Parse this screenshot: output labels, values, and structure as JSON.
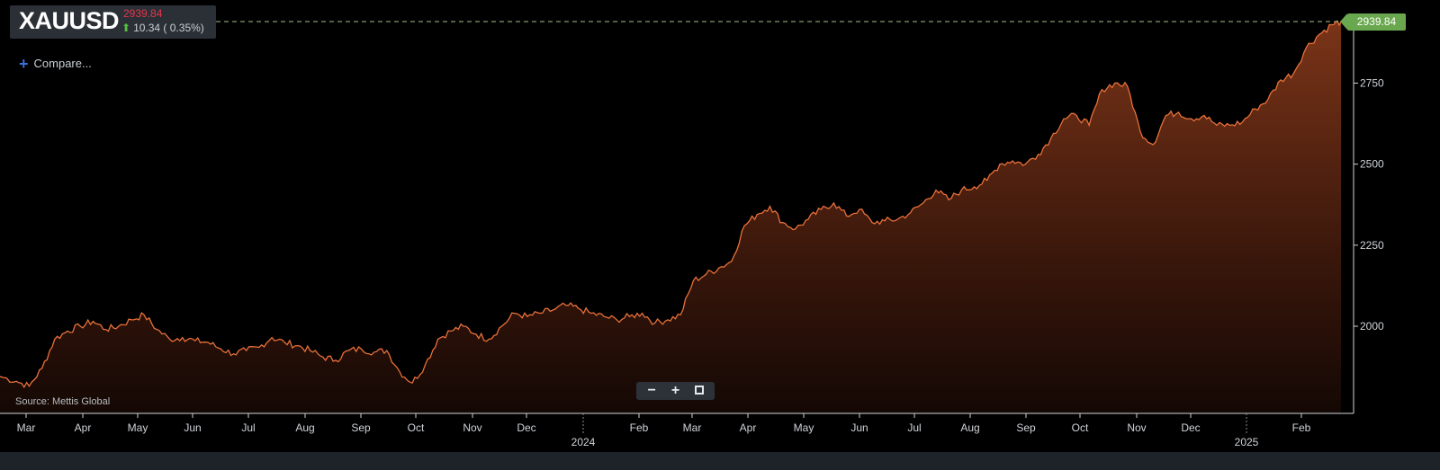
{
  "ticker": {
    "symbol": "XAUUSD",
    "price": "2939.84",
    "change": "10.34 ( 0.35%)",
    "direction": "up"
  },
  "compare_label": "Compare...",
  "source_label": "Source: Mettis Global",
  "last_price_tag": "2939.84",
  "zoom_controls": {
    "zoom_out": "−",
    "zoom_in": "+"
  },
  "colors": {
    "background": "#000000",
    "line": "#e8703a",
    "area_top": "#7a3418",
    "area_bottom": "#140804",
    "price_down_text": "#e0384c",
    "up_arrow": "#56c13d",
    "last_price_tag": "#6aa84f",
    "axis": "#cfd3d8"
  },
  "chart_data": {
    "type": "area",
    "y_ticks": [
      2000,
      2250,
      2500,
      2750
    ],
    "ylim": [
      1780,
      2980
    ],
    "x_tick_labels": [
      "Mar",
      "Apr",
      "May",
      "Jun",
      "Jul",
      "Aug",
      "Sep",
      "Oct",
      "Nov",
      "Dec",
      "Feb",
      "Mar",
      "Apr",
      "May",
      "Jun",
      "Jul",
      "Aug",
      "Sep",
      "Oct",
      "Nov",
      "Dec",
      "Feb"
    ],
    "year_labels": [
      "2024",
      "2025"
    ],
    "reference_line": 2939.84,
    "series": [
      {
        "x": [
          "2023-02-20",
          "2023-03-01",
          "2023-03-08",
          "2023-03-15",
          "2023-03-22",
          "2023-03-29",
          "2023-04-05",
          "2023-04-12",
          "2023-04-19",
          "2023-04-26",
          "2023-05-03",
          "2023-05-10",
          "2023-05-17",
          "2023-05-24",
          "2023-05-31",
          "2023-06-07",
          "2023-06-14",
          "2023-06-21",
          "2023-06-28",
          "2023-07-05",
          "2023-07-12",
          "2023-07-19",
          "2023-07-26",
          "2023-08-02",
          "2023-08-09",
          "2023-08-16",
          "2023-08-23",
          "2023-08-30",
          "2023-09-06",
          "2023-09-13",
          "2023-09-20",
          "2023-09-27",
          "2023-10-04",
          "2023-10-11",
          "2023-10-18",
          "2023-10-25",
          "2023-11-01",
          "2023-11-08",
          "2023-11-15",
          "2023-11-22",
          "2023-11-29",
          "2023-12-06",
          "2023-12-13",
          "2023-12-20",
          "2023-12-27",
          "2024-01-03",
          "2024-01-10",
          "2024-01-17",
          "2024-01-24",
          "2024-01-31",
          "2024-02-07",
          "2024-02-14",
          "2024-02-21",
          "2024-02-28",
          "2024-03-06",
          "2024-03-13",
          "2024-03-20",
          "2024-03-27",
          "2024-04-03",
          "2024-04-10",
          "2024-04-17",
          "2024-04-24",
          "2024-05-01",
          "2024-05-08",
          "2024-05-15",
          "2024-05-22",
          "2024-05-29",
          "2024-06-05",
          "2024-06-12",
          "2024-06-19",
          "2024-06-26",
          "2024-07-03",
          "2024-07-10",
          "2024-07-17",
          "2024-07-24",
          "2024-07-31",
          "2024-08-07",
          "2024-08-14",
          "2024-08-21",
          "2024-08-28",
          "2024-09-04",
          "2024-09-11",
          "2024-09-18",
          "2024-09-25",
          "2024-10-02",
          "2024-10-09",
          "2024-10-16",
          "2024-10-23",
          "2024-10-30",
          "2024-11-06",
          "2024-11-13",
          "2024-11-20",
          "2024-11-27",
          "2024-12-04",
          "2024-12-11",
          "2024-12-18",
          "2024-12-25",
          "2025-01-01",
          "2025-01-08",
          "2025-01-15",
          "2025-01-22",
          "2025-01-29",
          "2025-02-05",
          "2025-02-12",
          "2025-02-19",
          "2025-02-24"
        ],
        "y": [
          1845,
          1830,
          1815,
          1870,
          1960,
          1985,
          2000,
          2015,
          1990,
          2000,
          2020,
          2035,
          1990,
          1960,
          1965,
          1955,
          1950,
          1930,
          1915,
          1925,
          1935,
          1965,
          1950,
          1940,
          1925,
          1905,
          1895,
          1925,
          1930,
          1920,
          1925,
          1860,
          1825,
          1880,
          1960,
          1985,
          2000,
          1975,
          1960,
          2000,
          2040,
          2030,
          2040,
          2050,
          2065,
          2055,
          2040,
          2030,
          2020,
          2030,
          2040,
          2010,
          2020,
          2035,
          2140,
          2160,
          2180,
          2200,
          2310,
          2345,
          2370,
          2320,
          2300,
          2330,
          2360,
          2380,
          2340,
          2360,
          2320,
          2325,
          2330,
          2350,
          2380,
          2420,
          2390,
          2420,
          2430,
          2450,
          2500,
          2510,
          2500,
          2530,
          2580,
          2640,
          2650,
          2620,
          2730,
          2750,
          2740,
          2600,
          2560,
          2650,
          2660,
          2640,
          2650,
          2620,
          2620,
          2630,
          2670,
          2700,
          2760,
          2780,
          2860,
          2900,
          2930,
          2939.84
        ]
      }
    ]
  }
}
